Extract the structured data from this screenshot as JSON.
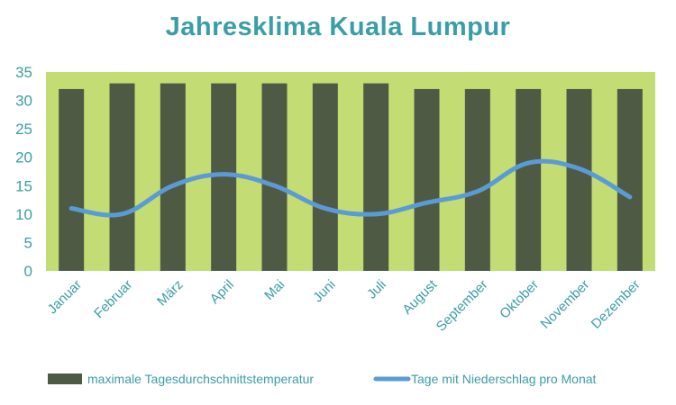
{
  "chart_data": {
    "type": "bar",
    "title": "Jahresklima  Kuala Lumpur",
    "categories": [
      "Januar",
      "Februar",
      "März",
      "April",
      "Mai",
      "Juni",
      "Juli",
      "August",
      "September",
      "Oktober",
      "November",
      "Dezember"
    ],
    "series": [
      {
        "name": "maximale Tagesdurchschnittstemperatur",
        "type": "bar",
        "color": "#4f5a45",
        "values": [
          32,
          33,
          33,
          33,
          33,
          33,
          33,
          32,
          32,
          32,
          32,
          32
        ]
      },
      {
        "name": "Tage mit Niederschlag pro Monat",
        "type": "line",
        "color": "#5b9bd5",
        "values": [
          11,
          10,
          15,
          17,
          15,
          11,
          10,
          12,
          14,
          19,
          18,
          13
        ]
      }
    ],
    "ylim": [
      0,
      35
    ],
    "yticks": [
      0,
      5,
      10,
      15,
      20,
      25,
      30,
      35
    ],
    "plot_background": "#c3dc74",
    "text_color": "#3a9ea5",
    "legend_position": "bottom",
    "grid": false
  }
}
